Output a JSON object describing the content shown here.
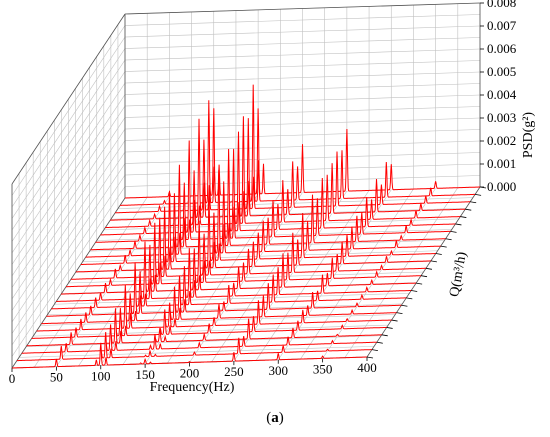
{
  "caption": {
    "open": "(",
    "letter": "a",
    "close": ")"
  },
  "chart_data": {
    "type": "line",
    "subtype": "waterfall-3d",
    "title": "",
    "xlabel": "Frequency(Hz)",
    "ylabel": "Q(m³/h)",
    "zlabel": "PSD(g²)",
    "x_ticks": [
      "0",
      "50",
      "100",
      "150",
      "200",
      "250",
      "300",
      "350",
      "400"
    ],
    "z_ticks": [
      "0.000",
      "0.001",
      "0.002",
      "0.003",
      "0.004",
      "0.005",
      "0.006",
      "0.007",
      "0.008"
    ],
    "xlim": [
      0,
      400
    ],
    "zlim": [
      0,
      0.008
    ],
    "grid": true,
    "series_count": 24,
    "series_color": "#ff0000",
    "grid_color": "#c0c0c0",
    "peak_frequencies_hz": [
      50,
      100,
      150,
      200,
      250,
      300,
      350
    ],
    "peak_profiles": {
      "front_series_psd": [
        0.0006,
        0.0011,
        0.0002,
        5e-05,
        0.0006,
        0.0003,
        0.0001
      ],
      "back_series_psd": [
        0.0002,
        0.0048,
        0.0055,
        0.0022,
        0.0028,
        0.0016,
        0.0004
      ]
    }
  }
}
